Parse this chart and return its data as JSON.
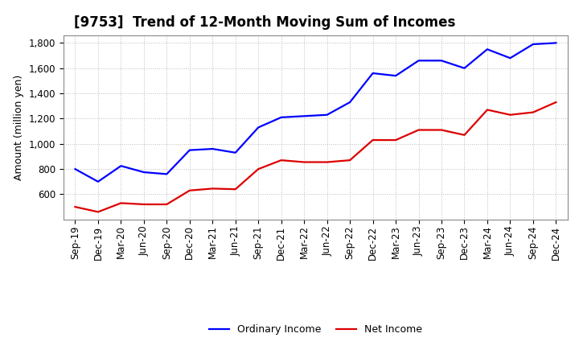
{
  "title": "[9753]  Trend of 12-Month Moving Sum of Incomes",
  "ylabel": "Amount (million yen)",
  "background_color": "#ffffff",
  "plot_bg_color": "#ffffff",
  "grid_color": "#bbbbbb",
  "title_fontsize": 12,
  "label_fontsize": 9,
  "tick_fontsize": 8.5,
  "x_labels": [
    "Sep-19",
    "Dec-19",
    "Mar-20",
    "Jun-20",
    "Sep-20",
    "Dec-20",
    "Mar-21",
    "Jun-21",
    "Sep-21",
    "Dec-21",
    "Mar-22",
    "Jun-22",
    "Sep-22",
    "Dec-22",
    "Mar-23",
    "Jun-23",
    "Sep-23",
    "Dec-23",
    "Mar-24",
    "Jun-24",
    "Sep-24",
    "Dec-24"
  ],
  "ordinary_income": [
    800,
    700,
    825,
    775,
    760,
    950,
    960,
    930,
    1130,
    1210,
    1220,
    1230,
    1330,
    1560,
    1540,
    1660,
    1660,
    1600,
    1750,
    1680,
    1790,
    1800
  ],
  "net_income": [
    500,
    460,
    530,
    520,
    520,
    630,
    645,
    640,
    800,
    870,
    855,
    855,
    870,
    1030,
    1030,
    1110,
    1110,
    1070,
    1270,
    1230,
    1250,
    1330
  ],
  "ordinary_color": "#0000ff",
  "net_color": "#dd0000",
  "ylim_min": 400,
  "ylim_max": 1860,
  "yticks": [
    600,
    800,
    1000,
    1200,
    1400,
    1600,
    1800
  ],
  "line_width": 1.6,
  "legend_fontsize": 9
}
